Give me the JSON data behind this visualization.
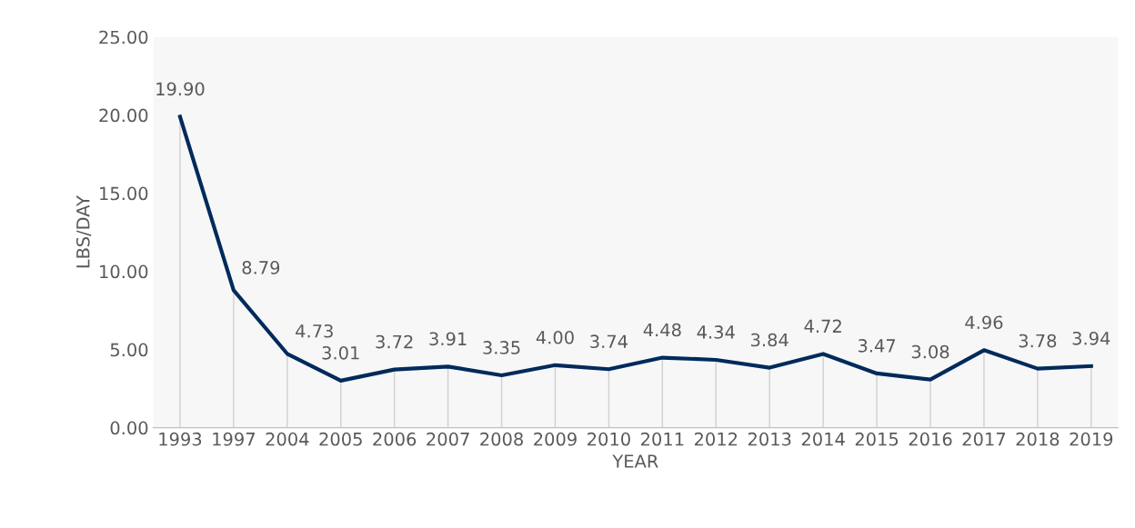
{
  "chart_data": {
    "type": "line",
    "xlabel": "YEAR",
    "ylabel": "LBS/DAY",
    "categories": [
      "1993",
      "1997",
      "2004",
      "2005",
      "2006",
      "2007",
      "2008",
      "2009",
      "2010",
      "2011",
      "2012",
      "2013",
      "2014",
      "2015",
      "2016",
      "2017",
      "2018",
      "2019"
    ],
    "series": [
      {
        "color": "#002a5c",
        "values": [
          19.9,
          8.79,
          4.73,
          3.01,
          3.72,
          3.91,
          3.35,
          4.0,
          3.74,
          4.48,
          4.34,
          3.84,
          4.72,
          3.47,
          3.08,
          4.96,
          3.78,
          3.94
        ],
        "value_labels": [
          "19.90",
          "8.79",
          "4.73",
          "3.01",
          "3.72",
          "3.91",
          "3.35",
          "4.00",
          "3.74",
          "4.48",
          "4.34",
          "3.84",
          "4.72",
          "3.47",
          "3.08",
          "4.96",
          "3.78",
          "3.94"
        ]
      }
    ],
    "ylim": [
      0,
      25
    ],
    "yticks": [
      {
        "value": 0,
        "label": "0.00"
      },
      {
        "value": 5,
        "label": "5.00"
      },
      {
        "value": 10,
        "label": "10.00"
      },
      {
        "value": 15,
        "label": "15.00"
      },
      {
        "value": 20,
        "label": "20.00"
      },
      {
        "value": 25,
        "label": "25.00"
      }
    ],
    "grid": "x",
    "legend": false,
    "marker": "none",
    "line_style": "solid"
  }
}
